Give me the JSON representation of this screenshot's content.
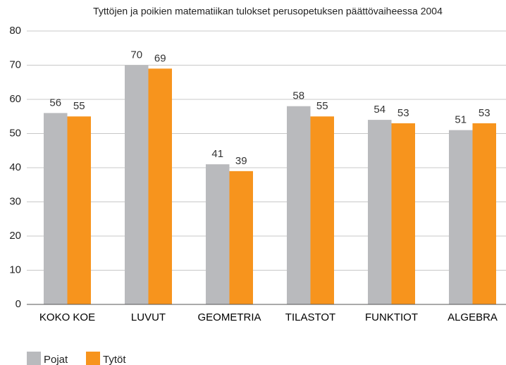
{
  "chart_data": {
    "type": "bar",
    "title": "Tyttöjen ja poikien matematiikan tulokset perusopetuksen päättövaiheessa 2004",
    "categories": [
      "KOKO KOE",
      "LUVUT",
      "GEOMETRIA",
      "TILASTOT",
      "FUNKTIOT",
      "ALGEBRA"
    ],
    "series": [
      {
        "name": "Pojat",
        "color": "#b9babd",
        "values": [
          56,
          70,
          41,
          58,
          54,
          51
        ]
      },
      {
        "name": "Tytöt",
        "color": "#f7941d",
        "values": [
          55,
          69,
          39,
          55,
          53,
          53
        ]
      }
    ],
    "ylim": [
      0,
      80
    ],
    "yticks": [
      0,
      10,
      20,
      30,
      40,
      50,
      60,
      70,
      80
    ],
    "grid": true,
    "legend": "bottom-left"
  }
}
